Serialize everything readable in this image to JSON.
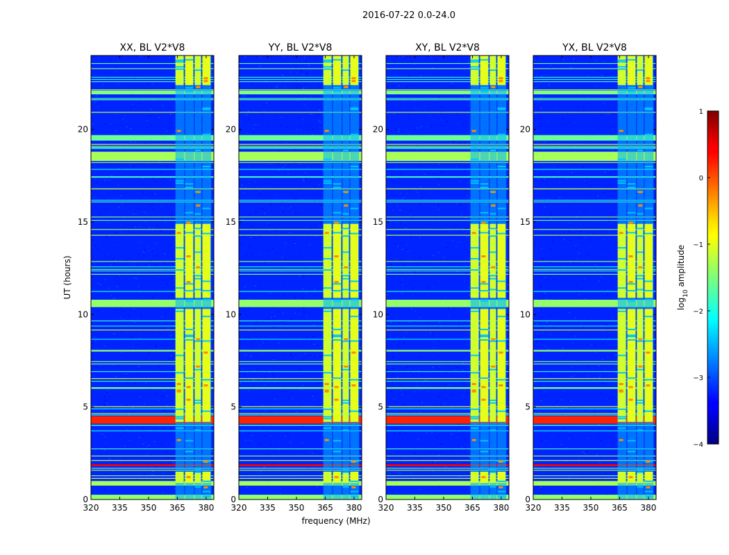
{
  "chart_data": {
    "type": "heatmap",
    "title": "2016-07-22 0.0-24.0",
    "xlabel": "frequency (MHz)",
    "ylabel": "UT (hours)",
    "xlim": [
      320,
      384
    ],
    "ylim": [
      0,
      24
    ],
    "x_ticks": [
      "320",
      "335",
      "350",
      "365",
      "380"
    ],
    "y_ticks": [
      "0",
      "5",
      "10",
      "15",
      "20"
    ],
    "panels": [
      {
        "title": "XX, BL V2*V8"
      },
      {
        "title": "YY, BL V2*V8"
      },
      {
        "title": "XY, BL V2*V8"
      },
      {
        "title": "YX, BL V2*V8"
      }
    ],
    "colorbar": {
      "label": "log10 amplitude",
      "label_base": "log",
      "label_sub": "10",
      "label_rest": " amplitude",
      "range": [
        -4,
        1
      ],
      "ticks": [
        "1",
        "0",
        "−1",
        "−2",
        "−3",
        "−4"
      ]
    },
    "rfi_bands_mhz": [
      [
        364,
        369
      ],
      [
        369,
        374
      ],
      [
        374,
        378
      ],
      [
        378,
        383
      ]
    ],
    "rfi_active_hours": [
      [
        0.9,
        1.5
      ],
      [
        4.2,
        10.3
      ],
      [
        10.9,
        14.9
      ],
      [
        22.4,
        24
      ]
    ],
    "horizontal_flagged_hours": [
      {
        "t0": 0.0,
        "t1": 0.25,
        "level": -1.4
      },
      {
        "t0": 0.75,
        "t1": 1.0,
        "level": -1.3
      },
      {
        "t0": 1.8,
        "t1": 1.9,
        "level": 0.4
      },
      {
        "t0": 4.1,
        "t1": 4.5,
        "level": 0.2
      },
      {
        "t0": 10.4,
        "t1": 10.8,
        "level": -1.4
      },
      {
        "t0": 18.3,
        "t1": 18.8,
        "level": -1.3
      },
      {
        "t0": 19.4,
        "t1": 19.7,
        "level": -1.6
      },
      {
        "t0": 21.9,
        "t1": 22.1,
        "level": -1.5
      }
    ],
    "background_level": -3.2
  }
}
